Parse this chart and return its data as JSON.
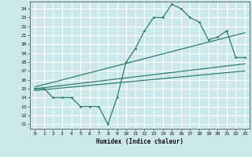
{
  "xlabel": "Humidex (Indice chaleur)",
  "line_color": "#2e7d6e",
  "bg_color": "#cde8ec",
  "grid_color": "#ffffff",
  "xlim": [
    -0.5,
    23.5
  ],
  "ylim": [
    10.5,
    24.8
  ],
  "yticks": [
    11,
    12,
    13,
    14,
    15,
    16,
    17,
    18,
    19,
    20,
    21,
    22,
    23,
    24
  ],
  "xticks": [
    0,
    1,
    2,
    3,
    4,
    5,
    6,
    7,
    8,
    9,
    10,
    11,
    12,
    13,
    14,
    15,
    16,
    17,
    18,
    19,
    20,
    21,
    22,
    23
  ],
  "main_x": [
    0,
    1,
    2,
    3,
    4,
    5,
    6,
    7,
    8,
    9,
    10,
    11,
    12,
    13,
    14,
    15,
    16,
    17,
    18,
    19,
    20,
    21,
    22,
    23
  ],
  "main_y": [
    15,
    15,
    14,
    14,
    14,
    13,
    13,
    13,
    11,
    14,
    18,
    19.5,
    21.5,
    23,
    23,
    24.5,
    24,
    23,
    22.5,
    20.5,
    20.8,
    21.5,
    18.5,
    18.5
  ],
  "trend1_x": [
    0,
    23
  ],
  "trend1_y": [
    15.0,
    17.8
  ],
  "trend2_x": [
    0,
    23
  ],
  "trend2_y": [
    15.2,
    21.3
  ],
  "trend3_x": [
    0,
    23
  ],
  "trend3_y": [
    14.8,
    17.0
  ]
}
